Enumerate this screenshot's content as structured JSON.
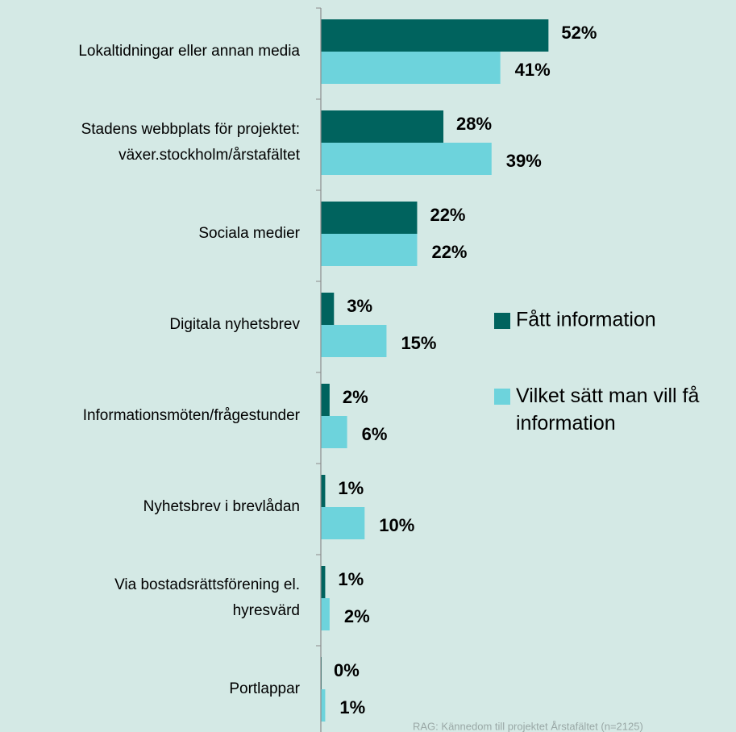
{
  "chart_data": {
    "type": "hbar",
    "categories": [
      "Lokaltidningar eller annan media",
      "Stadens webbplats för projektet:\nväxer.stockholm/årstafältet",
      "Sociala medier",
      "Digitala nyhetsbrev",
      "Informationsmöten/frågestunder",
      "Nyhetsbrev i brevlådan",
      "Via bostadsrättsförening el.\nhyresvärd",
      "Portlappar"
    ],
    "series": [
      {
        "name": "Fått information",
        "color": "#00635e",
        "values": [
          52,
          28,
          22,
          3,
          2,
          1,
          1,
          0
        ],
        "value_labels": [
          "52%",
          "28%",
          "22%",
          "3%",
          "2%",
          "1%",
          "1%",
          "0%"
        ]
      },
      {
        "name": "Vilket sätt man vill få\ninformation",
        "color": "#6dd3dc",
        "values": [
          41,
          39,
          22,
          15,
          6,
          10,
          2,
          1
        ],
        "value_labels": [
          "41%",
          "39%",
          "22%",
          "15%",
          "6%",
          "10%",
          "2%",
          "1%"
        ]
      }
    ],
    "xlim": [
      0,
      100
    ],
    "legend": "right",
    "source": "RAG: Kännedom till projektet Årstafältet (n=2125)"
  }
}
